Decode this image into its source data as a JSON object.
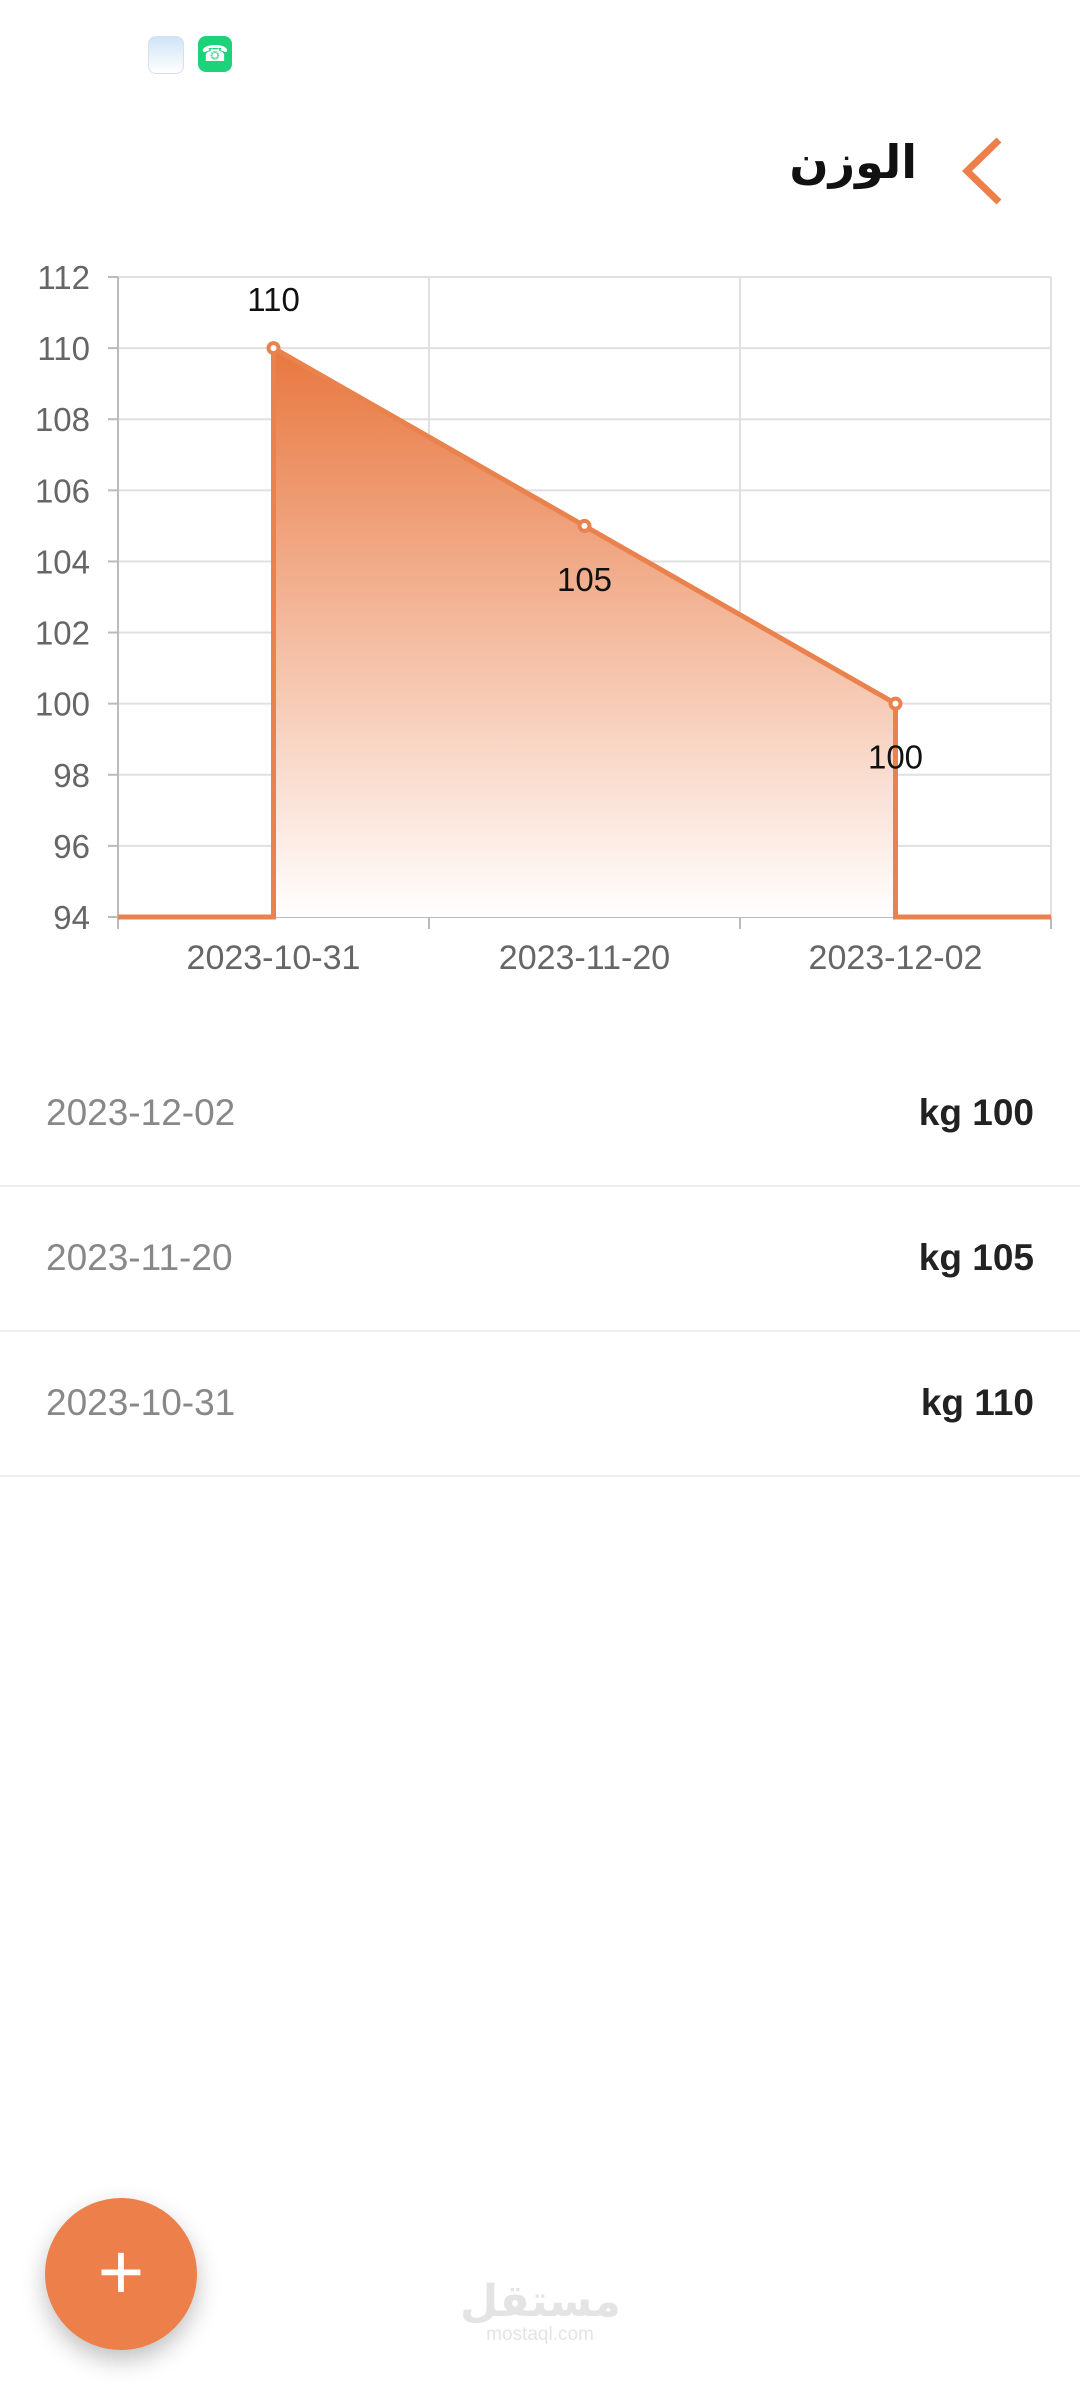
{
  "status_bar": {
    "icons": [
      "app-notification-icon",
      "phone-icon"
    ]
  },
  "header": {
    "title": "الوزن",
    "back_icon": "chevron-left-icon"
  },
  "accent_color": "#ec7f4a",
  "chart_data": {
    "type": "area",
    "categories": [
      "2023-10-31",
      "2023-11-20",
      "2023-12-02"
    ],
    "values": [
      110,
      105,
      100
    ],
    "data_labels": [
      "110",
      "105",
      "100"
    ],
    "ylim": [
      94,
      112
    ],
    "yticks": [
      94,
      96,
      98,
      100,
      102,
      104,
      106,
      108,
      110,
      112
    ],
    "grid": true,
    "line_color": "#e9824d",
    "fill": "gradient orange to white",
    "title": "",
    "xlabel": "",
    "ylabel": ""
  },
  "entries": [
    {
      "date": "2023-12-02",
      "value": "kg 100"
    },
    {
      "date": "2023-11-20",
      "value": "kg 105"
    },
    {
      "date": "2023-10-31",
      "value": "kg 110"
    }
  ],
  "fab": {
    "label": "+"
  },
  "watermark": {
    "arabic": "مستقل",
    "latin": "mostaql.com"
  }
}
